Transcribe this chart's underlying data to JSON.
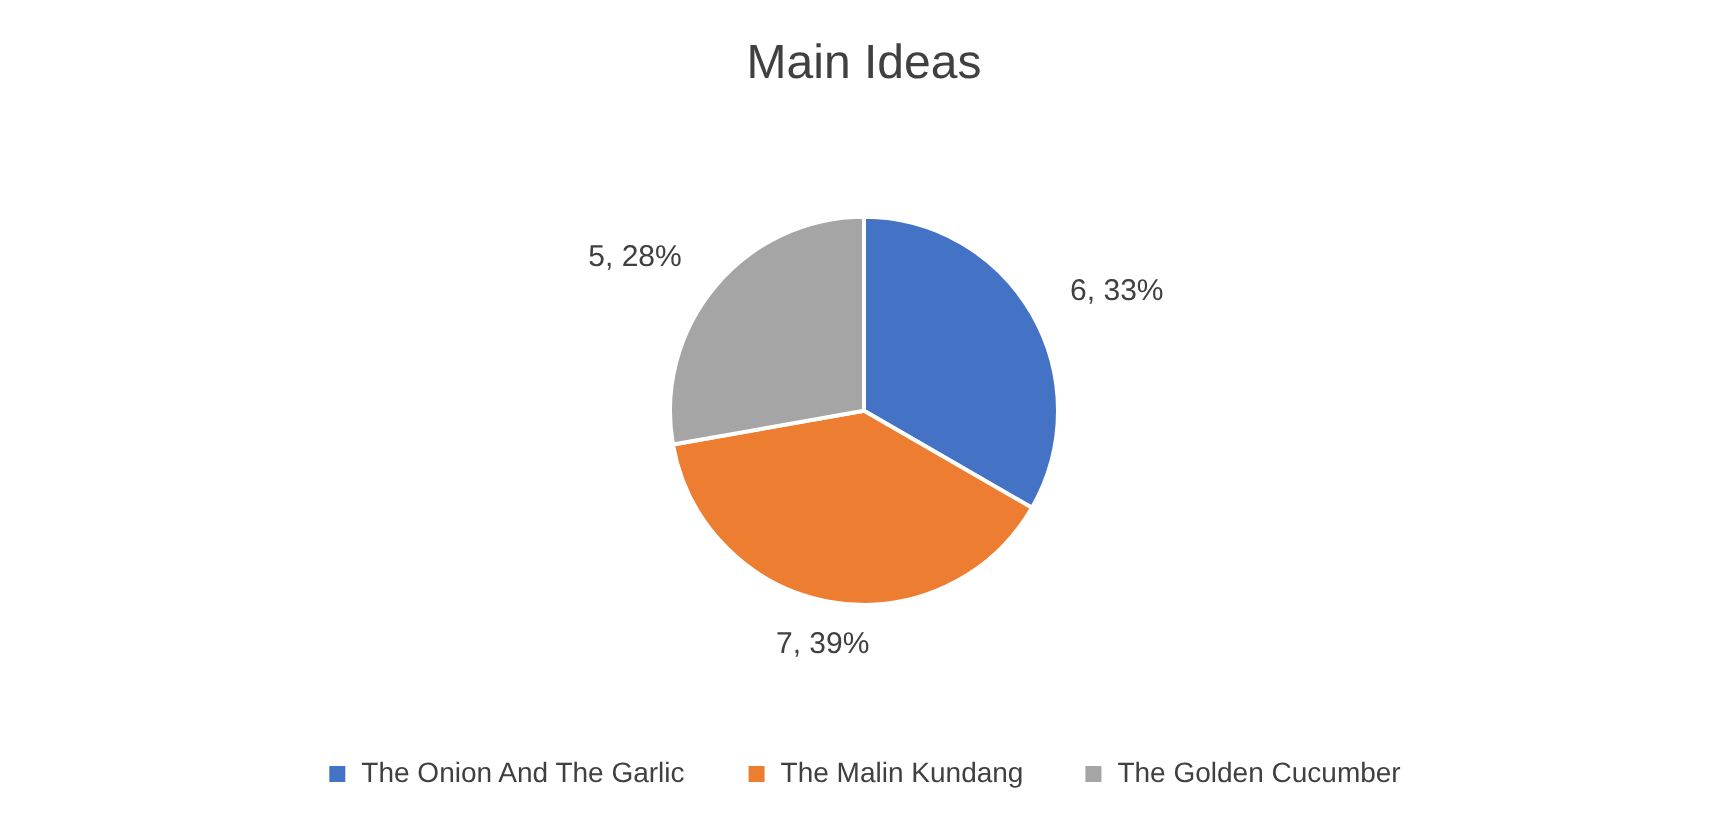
{
  "chart_data": {
    "type": "pie",
    "title": "Main Ideas",
    "categories": [
      "The Onion And The Garlic",
      "The Malin Kundang",
      "The Golden Cucumber"
    ],
    "values": [
      6,
      7,
      5
    ],
    "colors": [
      "#4472c4",
      "#ed7d31",
      "#a5a5a5"
    ],
    "value_labels": [
      "6, 33%",
      "7, 39%",
      "5, 28%"
    ],
    "legend": "bottom"
  }
}
